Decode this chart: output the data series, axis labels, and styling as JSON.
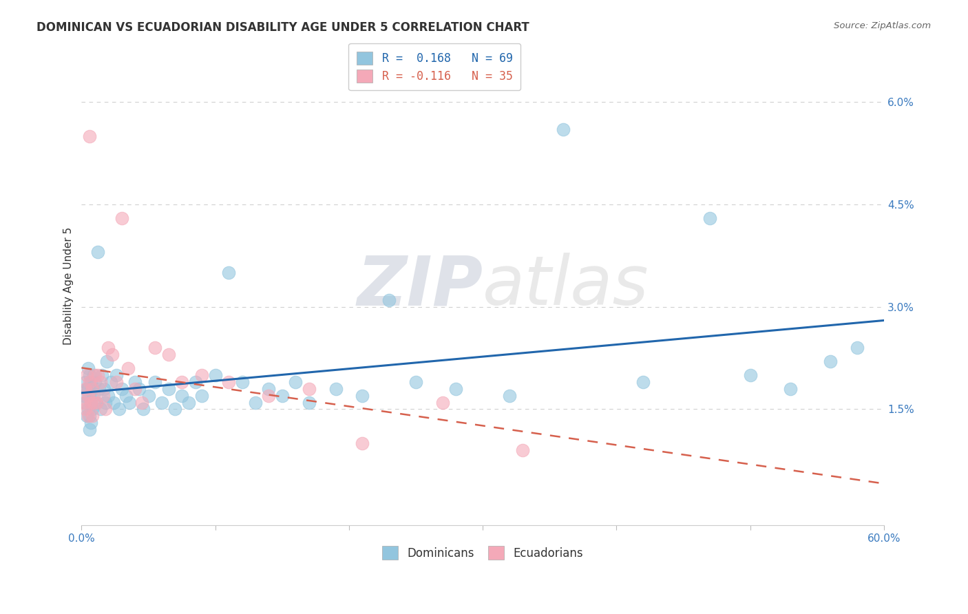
{
  "title": "DOMINICAN VS ECUADORIAN DISABILITY AGE UNDER 5 CORRELATION CHART",
  "source_text": "Source: ZipAtlas.com",
  "ylabel": "Disability Age Under 5",
  "xlim": [
    0.0,
    0.6
  ],
  "ylim": [
    -0.002,
    0.068
  ],
  "xtick_labels": [
    "0.0%",
    "",
    "",
    "",
    "",
    "",
    "60.0%"
  ],
  "xtick_vals": [
    0.0,
    0.1,
    0.2,
    0.3,
    0.4,
    0.5,
    0.6
  ],
  "ytick_labels": [
    "1.5%",
    "3.0%",
    "4.5%",
    "6.0%"
  ],
  "ytick_vals": [
    0.015,
    0.03,
    0.045,
    0.06
  ],
  "legend1_label": "R =  0.168   N = 69",
  "legend2_label": "R = -0.116   N = 35",
  "dominican_color": "#92c5de",
  "ecuadorian_color": "#f4a9b8",
  "dominican_line_color": "#2166ac",
  "ecuadorian_line_color": "#d6604d",
  "watermark_zip": "ZIP",
  "watermark_atlas": "atlas",
  "background_color": "#ffffff",
  "grid_color": "#d0d0d0",
  "dom_x": [
    0.002,
    0.003,
    0.003,
    0.004,
    0.004,
    0.005,
    0.005,
    0.005,
    0.006,
    0.006,
    0.006,
    0.006,
    0.007,
    0.007,
    0.007,
    0.008,
    0.008,
    0.009,
    0.009,
    0.01,
    0.011,
    0.012,
    0.013,
    0.014,
    0.015,
    0.017,
    0.018,
    0.019,
    0.02,
    0.022,
    0.024,
    0.026,
    0.028,
    0.03,
    0.033,
    0.036,
    0.04,
    0.043,
    0.046,
    0.05,
    0.055,
    0.06,
    0.065,
    0.07,
    0.075,
    0.08,
    0.085,
    0.09,
    0.1,
    0.11,
    0.12,
    0.13,
    0.14,
    0.15,
    0.16,
    0.17,
    0.19,
    0.21,
    0.23,
    0.25,
    0.28,
    0.32,
    0.36,
    0.42,
    0.47,
    0.5,
    0.53,
    0.56,
    0.58
  ],
  "dom_y": [
    0.017,
    0.019,
    0.016,
    0.018,
    0.014,
    0.021,
    0.018,
    0.015,
    0.02,
    0.017,
    0.014,
    0.012,
    0.019,
    0.016,
    0.013,
    0.018,
    0.015,
    0.02,
    0.017,
    0.019,
    0.016,
    0.038,
    0.018,
    0.015,
    0.02,
    0.018,
    0.016,
    0.022,
    0.017,
    0.019,
    0.016,
    0.02,
    0.015,
    0.018,
    0.017,
    0.016,
    0.019,
    0.018,
    0.015,
    0.017,
    0.019,
    0.016,
    0.018,
    0.015,
    0.017,
    0.016,
    0.019,
    0.017,
    0.02,
    0.035,
    0.019,
    0.016,
    0.018,
    0.017,
    0.019,
    0.016,
    0.018,
    0.017,
    0.031,
    0.019,
    0.018,
    0.017,
    0.056,
    0.019,
    0.043,
    0.02,
    0.018,
    0.022,
    0.024
  ],
  "ecu_x": [
    0.002,
    0.003,
    0.003,
    0.004,
    0.005,
    0.005,
    0.006,
    0.006,
    0.007,
    0.008,
    0.008,
    0.009,
    0.01,
    0.011,
    0.012,
    0.014,
    0.016,
    0.018,
    0.02,
    0.023,
    0.026,
    0.03,
    0.035,
    0.04,
    0.045,
    0.055,
    0.065,
    0.075,
    0.09,
    0.11,
    0.14,
    0.17,
    0.21,
    0.27,
    0.33
  ],
  "ecu_y": [
    0.016,
    0.018,
    0.015,
    0.02,
    0.017,
    0.014,
    0.055,
    0.019,
    0.016,
    0.018,
    0.014,
    0.016,
    0.02,
    0.016,
    0.02,
    0.019,
    0.017,
    0.015,
    0.024,
    0.023,
    0.019,
    0.043,
    0.021,
    0.018,
    0.016,
    0.024,
    0.023,
    0.019,
    0.02,
    0.019,
    0.017,
    0.018,
    0.01,
    0.016,
    0.009
  ]
}
